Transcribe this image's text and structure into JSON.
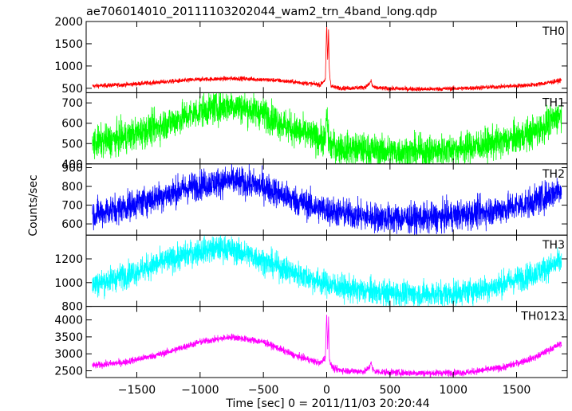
{
  "chart_data": {
    "type": "line",
    "title": "ae706014010_20111103202044_wam2_trn_4band_long.qdp",
    "xlabel": "Time [sec] 0 = 2011/11/03 20:20:44",
    "ylabel": "Counts/sec",
    "xlim": [
      -1900,
      1900
    ],
    "xticks": [
      -1500,
      -1000,
      -500,
      0,
      500,
      1000,
      1500
    ],
    "grid": false,
    "panels": [
      {
        "name": "TH0",
        "color": "#ff0000",
        "ylim": [
          400,
          2000
        ],
        "yticks": [
          500,
          1000,
          1500,
          2000
        ],
        "series": {
          "x": [
            -1850,
            -1600,
            -1300,
            -1000,
            -700,
            -400,
            -150,
            -50,
            -10,
            0,
            8,
            15,
            20,
            25,
            35,
            60,
            150,
            300,
            340,
            350,
            360,
            380,
            500,
            800,
            1100,
            1400,
            1650,
            1800,
            1850
          ],
          "y": [
            550,
            580,
            640,
            700,
            720,
            680,
            610,
            580,
            700,
            1950,
            1100,
            1850,
            1000,
            750,
            560,
            520,
            500,
            520,
            600,
            680,
            560,
            510,
            490,
            480,
            500,
            540,
            580,
            650,
            680
          ],
          "noise": 25
        }
      },
      {
        "name": "TH1",
        "color": "#00ff00",
        "ylim": [
          400,
          750
        ],
        "yticks": [
          400,
          500,
          600,
          700
        ],
        "series": {
          "x": [
            -1850,
            -1600,
            -1300,
            -1000,
            -750,
            -500,
            -300,
            -100,
            -10,
            0,
            5,
            12,
            20,
            40,
            100,
            300,
            500,
            800,
            1100,
            1400,
            1650,
            1800,
            1850
          ],
          "y": [
            500,
            530,
            590,
            660,
            690,
            650,
            580,
            530,
            520,
            640,
            610,
            540,
            500,
            490,
            480,
            470,
            460,
            460,
            480,
            510,
            560,
            620,
            650
          ],
          "noise": 40
        }
      },
      {
        "name": "TH2",
        "color": "#0000ff",
        "ylim": [
          540,
          920
        ],
        "yticks": [
          600,
          700,
          800,
          900
        ],
        "series": {
          "x": [
            -1850,
            -1600,
            -1300,
            -1000,
            -750,
            -500,
            -300,
            -100,
            100,
            300,
            500,
            800,
            1100,
            1400,
            1650,
            1800,
            1850
          ],
          "y": [
            650,
            690,
            750,
            810,
            830,
            800,
            740,
            690,
            660,
            640,
            630,
            630,
            650,
            680,
            720,
            770,
            790
          ],
          "noise": 40
        }
      },
      {
        "name": "TH3",
        "color": "#00ffff",
        "ylim": [
          800,
          1400
        ],
        "yticks": [
          800,
          1000,
          1200
        ],
        "series": {
          "x": [
            -1850,
            -1600,
            -1300,
            -1000,
            -800,
            -600,
            -400,
            -200,
            0,
            200,
            400,
            700,
            1000,
            1300,
            1600,
            1800,
            1850
          ],
          "y": [
            980,
            1060,
            1170,
            1270,
            1290,
            1230,
            1140,
            1060,
            990,
            940,
            920,
            900,
            910,
            960,
            1060,
            1150,
            1180
          ],
          "noise": 55
        }
      },
      {
        "name": "TH0123",
        "color": "#ff00ff",
        "ylim": [
          2300,
          4400
        ],
        "yticks": [
          2500,
          3000,
          3500,
          4000
        ],
        "series": {
          "x": [
            -1850,
            -1600,
            -1300,
            -1000,
            -750,
            -500,
            -250,
            -50,
            -10,
            0,
            8,
            15,
            20,
            25,
            35,
            60,
            150,
            300,
            340,
            350,
            360,
            380,
            500,
            800,
            1100,
            1400,
            1650,
            1800,
            1850
          ],
          "y": [
            2650,
            2750,
            3000,
            3350,
            3500,
            3350,
            2950,
            2720,
            2900,
            4200,
            3200,
            4100,
            3000,
            2800,
            2650,
            2550,
            2500,
            2480,
            2600,
            2800,
            2550,
            2480,
            2450,
            2430,
            2450,
            2600,
            2900,
            3200,
            3300
          ],
          "noise": 50
        }
      }
    ]
  }
}
